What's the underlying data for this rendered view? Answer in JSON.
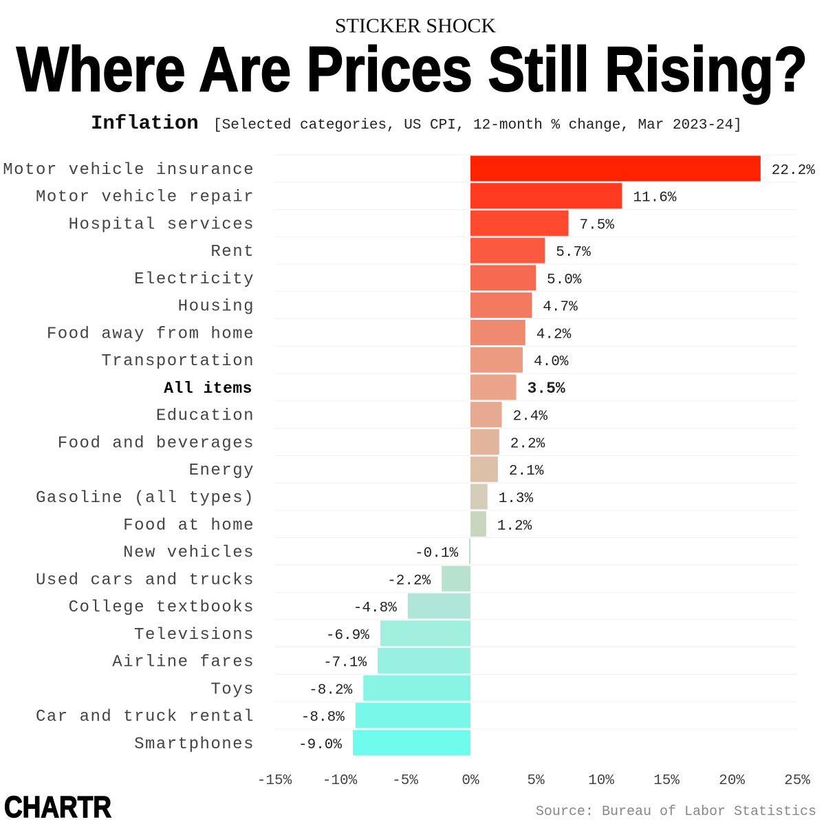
{
  "kicker": "STICKER SHOCK",
  "chart_data": {
    "type": "bar",
    "orientation": "horizontal",
    "title": "Where Are Prices Still Rising?",
    "subtitle_lead": "Inflation",
    "subtitle": "[Selected categories, US CPI, 12-month % change, Mar 2023-24]",
    "categories": [
      "Motor vehicle insurance",
      "Motor vehicle repair",
      "Hospital services",
      "Rent",
      "Electricity",
      "Housing",
      "Food away from home",
      "Transportation",
      "All items",
      "Education",
      "Food and beverages",
      "Energy",
      "Gasoline (all types)",
      "Food at home",
      "New vehicles",
      "Used cars and trucks",
      "College textbooks",
      "Televisions",
      "Airline fares",
      "Toys",
      "Car and truck rental",
      "Smartphones"
    ],
    "values": [
      22.2,
      11.6,
      7.5,
      5.7,
      5.0,
      4.7,
      4.2,
      4.0,
      3.5,
      2.4,
      2.2,
      2.1,
      1.3,
      1.2,
      -0.1,
      -2.2,
      -4.8,
      -6.9,
      -7.1,
      -8.2,
      -8.8,
      -9.0
    ],
    "value_labels": [
      "22.2%",
      "11.6%",
      "7.5%",
      "5.7%",
      "5.0%",
      "4.7%",
      "4.2%",
      "4.0%",
      "3.5%",
      "2.4%",
      "2.2%",
      "2.1%",
      "1.3%",
      "1.2%",
      "-0.1%",
      "-2.2%",
      "-4.8%",
      "-6.9%",
      "-7.1%",
      "-8.2%",
      "-8.8%",
      "-9.0%"
    ],
    "colors": [
      "#ff2200",
      "#ff3a20",
      "#ff4a30",
      "#f95a40",
      "#f56a50",
      "#f27a60",
      "#ef8a70",
      "#ec9a80",
      "#e9a48a",
      "#e6aa92",
      "#e2b49c",
      "#dcc0a8",
      "#d4ccb8",
      "#c8d6c0",
      "#c0dccc",
      "#b8e2d0",
      "#b0e6d8",
      "#a0eede",
      "#98f0e0",
      "#88f4e4",
      "#78f8e8",
      "#6ffcec"
    ],
    "bold_category": "All items",
    "xlim": [
      -15,
      25
    ],
    "xticks": [
      {
        "value": -15,
        "label": "-15%"
      },
      {
        "value": -10,
        "label": "-10%"
      },
      {
        "value": -5,
        "label": "-5%"
      },
      {
        "value": 0,
        "label": "0%"
      },
      {
        "value": 5,
        "label": "5%"
      },
      {
        "value": 10,
        "label": "10%"
      },
      {
        "value": 15,
        "label": "15%"
      },
      {
        "value": 20,
        "label": "20%"
      },
      {
        "value": 25,
        "label": "25%"
      }
    ],
    "source": "Source: Bureau of Labor Statistics"
  },
  "logo": "CHARTR"
}
